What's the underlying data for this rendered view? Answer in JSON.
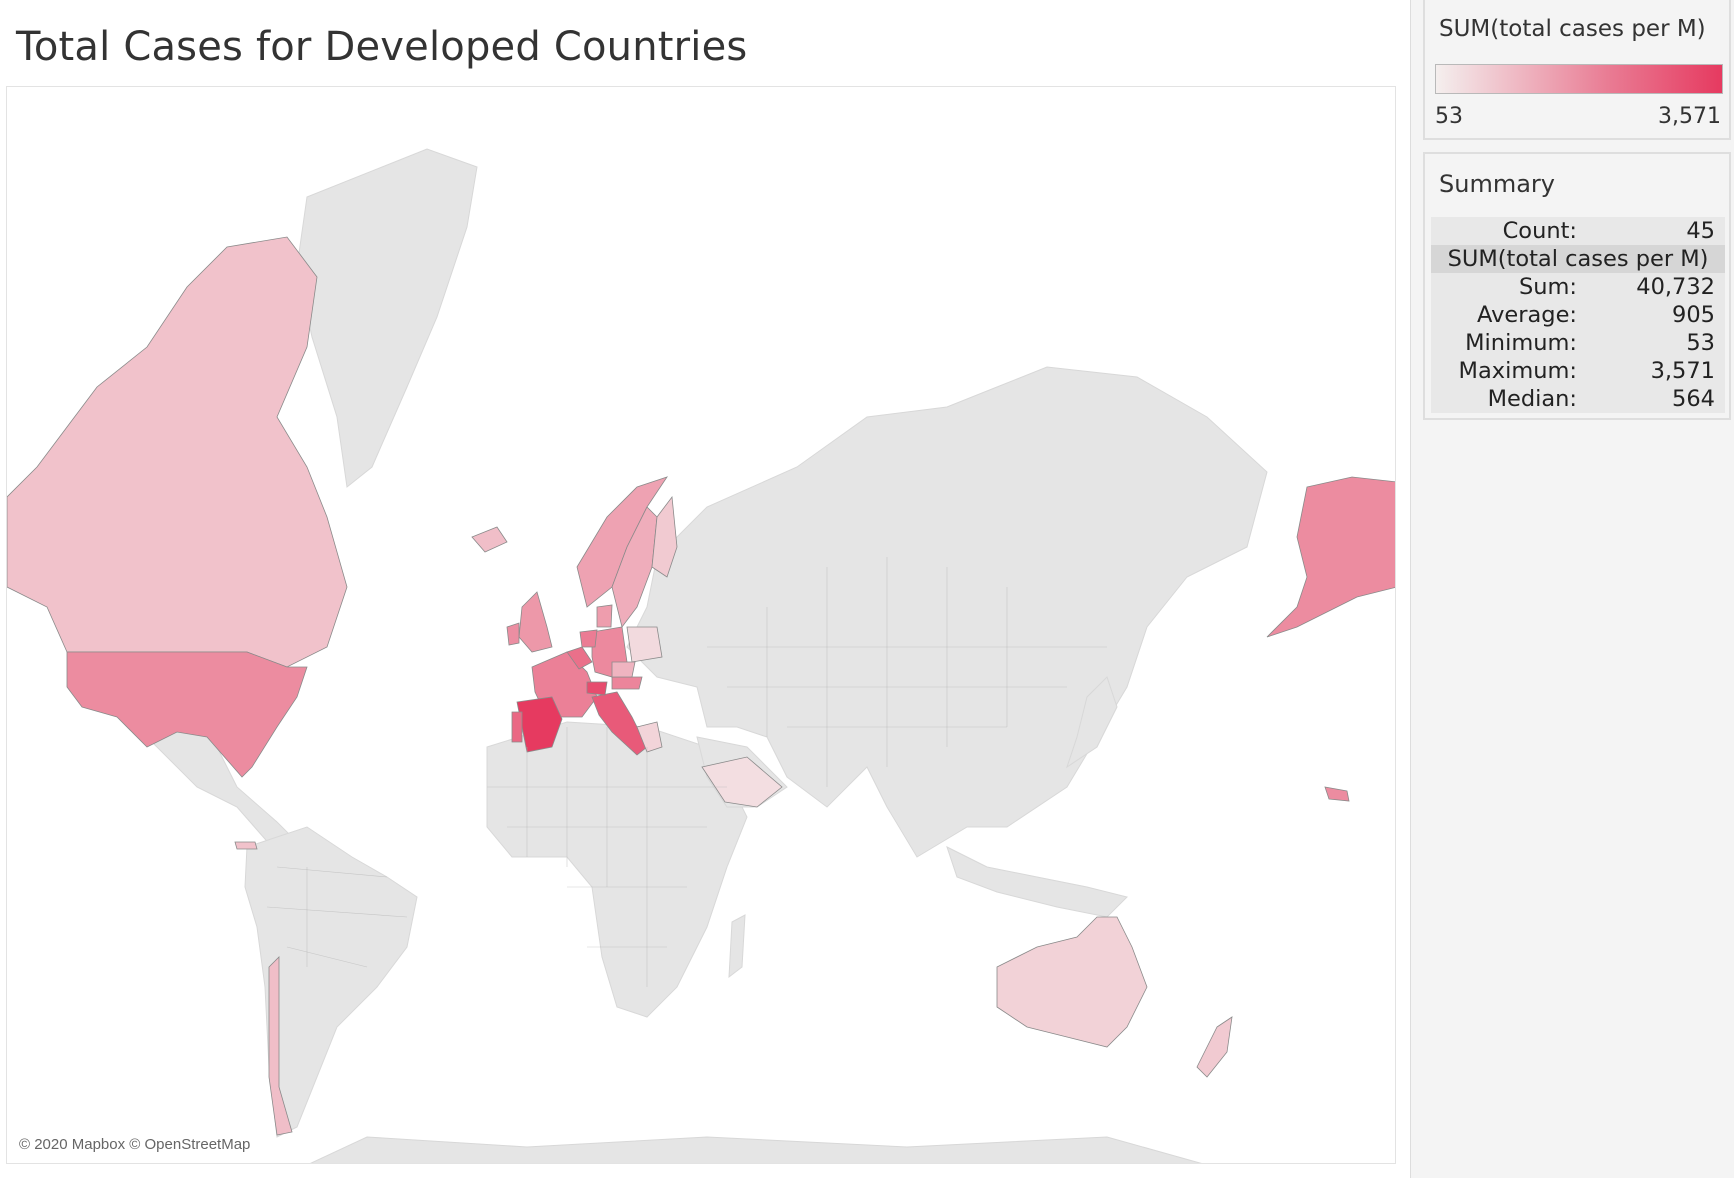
{
  "title": "Total Cases for Developed Countries",
  "attribution": "© 2020 Mapbox © OpenStreetMap",
  "colors": {
    "land": "#e5e5e5",
    "border": "#b0b0b0",
    "ramp_low": "#f4efee",
    "ramp_high": "#e63a60"
  },
  "legend": {
    "title": "SUM(total cases per M)",
    "min_label": "53",
    "max_label": "3,571",
    "min": 53,
    "max": 3571
  },
  "summary": {
    "title": "Summary",
    "count_label": "Count:",
    "count_value": "45",
    "measure_header": "SUM(total cases per M)",
    "rows": [
      {
        "label": "Sum:",
        "value": "40,732"
      },
      {
        "label": "Average:",
        "value": "905"
      },
      {
        "label": "Minimum:",
        "value": "53"
      },
      {
        "label": "Maximum:",
        "value": "3,571"
      },
      {
        "label": "Median:",
        "value": "564"
      }
    ]
  },
  "map_data": {
    "type": "choropleth",
    "measure": "total cases per M",
    "highlighted_regions": [
      {
        "name": "Canada",
        "value": 400
      },
      {
        "name": "United States",
        "value": 1350
      },
      {
        "name": "Alaska",
        "value": 1350
      },
      {
        "name": "Iceland",
        "value": 450
      },
      {
        "name": "Norway",
        "value": 900
      },
      {
        "name": "Sweden",
        "value": 700
      },
      {
        "name": "Finland",
        "value": 300
      },
      {
        "name": "United Kingdom",
        "value": 1100
      },
      {
        "name": "Ireland",
        "value": 1300
      },
      {
        "name": "France",
        "value": 1600
      },
      {
        "name": "Spain",
        "value": 3571
      },
      {
        "name": "Portugal",
        "value": 2200
      },
      {
        "name": "Italy",
        "value": 2600
      },
      {
        "name": "Switzerland",
        "value": 3000
      },
      {
        "name": "Germany",
        "value": 1400
      },
      {
        "name": "Belgium",
        "value": 2000
      },
      {
        "name": "Netherlands",
        "value": 1700
      },
      {
        "name": "Austria",
        "value": 1500
      },
      {
        "name": "Denmark",
        "value": 1000
      },
      {
        "name": "Poland",
        "value": 150
      },
      {
        "name": "Czechia",
        "value": 600
      },
      {
        "name": "Greece",
        "value": 200
      },
      {
        "name": "Saudi Arabia",
        "value": 120
      },
      {
        "name": "Chile",
        "value": 450
      },
      {
        "name": "Australia",
        "value": 220
      },
      {
        "name": "New Zealand",
        "value": 300
      },
      {
        "name": "Panama",
        "value": 400
      },
      {
        "name": "Hawaii",
        "value": 1350
      }
    ]
  }
}
